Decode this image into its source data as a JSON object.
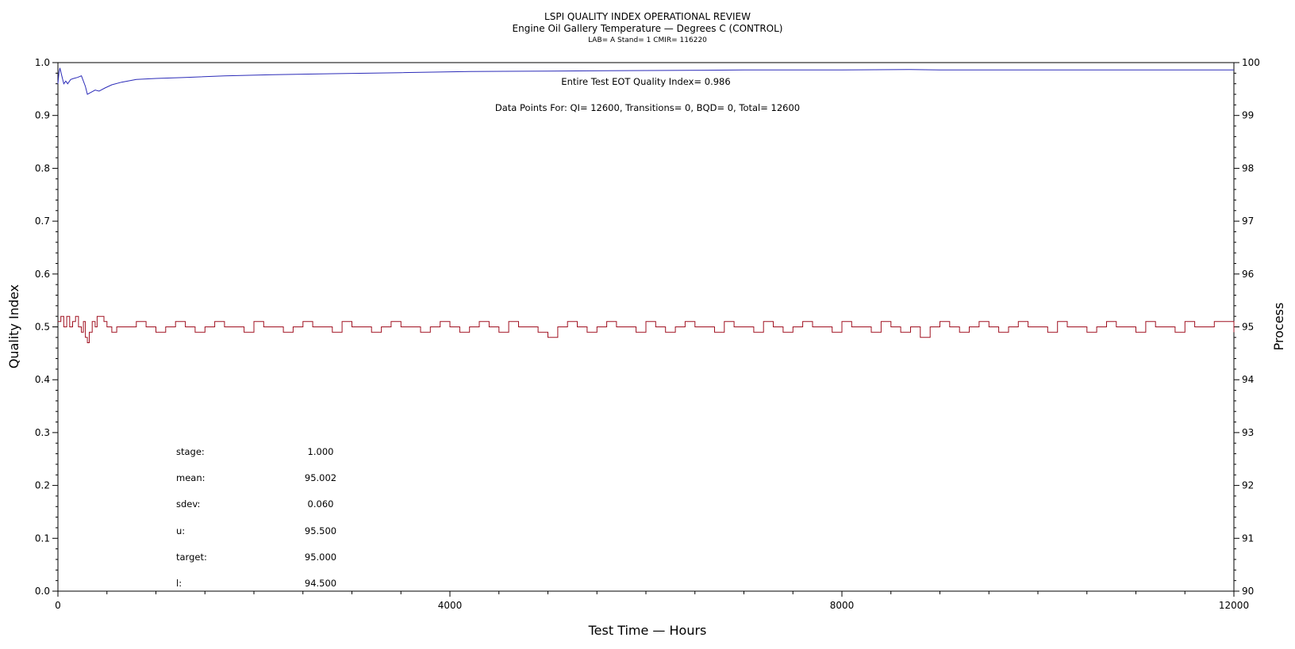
{
  "chart_data": {
    "type": "line",
    "title": "LSPI QUALITY INDEX OPERATIONAL REVIEW",
    "subtitle": "Engine Oil Gallery Temperature — Degrees C (CONTROL)",
    "subtitle2": "LAB= A Stand= 1 CMIR= 116220",
    "xlabel": "Test Time — Hours",
    "ylabel_left": "Quality Index",
    "ylabel_right": "Process",
    "xlim": [
      0,
      12000
    ],
    "ylim_left": [
      0.0,
      1.0
    ],
    "ylim_right": [
      90,
      100
    ],
    "x_ticks": [
      "0",
      "4000",
      "8000",
      "12000"
    ],
    "y_left_ticks": [
      "0.0",
      "0.1",
      "0.2",
      "0.3",
      "0.4",
      "0.5",
      "0.6",
      "0.7",
      "0.8",
      "0.9",
      "1.0"
    ],
    "y_right_ticks": [
      "90",
      "91",
      "92",
      "93",
      "94",
      "95",
      "96",
      "97",
      "98",
      "99",
      "100"
    ],
    "quality_index_text": "Entire Test EOT Quality Index=   0.986",
    "data_points_text": "Data Points For: QI= 12600, Transitions=     0, BQD=     0, Total= 12600",
    "stats": [
      {
        "label": "stage:",
        "value": "1.000"
      },
      {
        "label": "mean:",
        "value": "95.002"
      },
      {
        "label": "sdev:",
        "value": "0.060"
      },
      {
        "label": "u:",
        "value": "95.500"
      },
      {
        "label": "target:",
        "value": "95.000"
      },
      {
        "label": "l:",
        "value": "94.500"
      }
    ],
    "colors": {
      "quality_index": "#2b2bb8",
      "process": "#a01020"
    },
    "series": [
      {
        "axis": "left",
        "x": [
          0,
          10,
          20,
          40,
          60,
          80,
          100,
          130,
          160,
          200,
          240,
          280,
          300,
          320,
          350,
          380,
          420,
          480,
          550,
          650,
          800,
          1000,
          1300,
          1700,
          2200,
          2800,
          3500,
          4200,
          5000,
          6000,
          7000,
          8000,
          8700,
          9000,
          10000,
          11000,
          12000
        ],
        "y": [
          0.96,
          0.98,
          0.99,
          0.975,
          0.96,
          0.965,
          0.96,
          0.968,
          0.97,
          0.972,
          0.975,
          0.955,
          0.94,
          0.942,
          0.945,
          0.948,
          0.946,
          0.952,
          0.958,
          0.963,
          0.968,
          0.97,
          0.972,
          0.975,
          0.977,
          0.979,
          0.981,
          0.983,
          0.984,
          0.985,
          0.986,
          0.986,
          0.987,
          0.986,
          0.986,
          0.986,
          0.986
        ]
      },
      {
        "axis": "right",
        "x": [
          0,
          30,
          60,
          90,
          120,
          150,
          180,
          210,
          240,
          260,
          280,
          300,
          320,
          350,
          380,
          400,
          430,
          470,
          500,
          550,
          600,
          700,
          800,
          900,
          1000,
          1100,
          1200,
          1300,
          1400,
          1500,
          1600,
          1700,
          1800,
          1900,
          2000,
          2100,
          2200,
          2300,
          2400,
          2500,
          2600,
          2700,
          2800,
          2900,
          3000,
          3100,
          3200,
          3300,
          3400,
          3500,
          3600,
          3700,
          3800,
          3900,
          4000,
          4100,
          4200,
          4300,
          4400,
          4500,
          4600,
          4700,
          4800,
          4900,
          5000,
          5100,
          5200,
          5300,
          5400,
          5500,
          5600,
          5700,
          5800,
          5900,
          6000,
          6100,
          6200,
          6300,
          6400,
          6500,
          6600,
          6700,
          6800,
          6900,
          7000,
          7100,
          7200,
          7300,
          7400,
          7500,
          7600,
          7700,
          7800,
          7900,
          8000,
          8100,
          8200,
          8300,
          8400,
          8500,
          8600,
          8700,
          8800,
          8900,
          9000,
          9100,
          9200,
          9300,
          9400,
          9500,
          9600,
          9700,
          9800,
          9900,
          10000,
          10100,
          10200,
          10300,
          10400,
          10500,
          10600,
          10700,
          10800,
          10900,
          11000,
          11100,
          11200,
          11300,
          11400,
          11500,
          11600,
          11700,
          11800,
          11900,
          12000
        ],
        "y": [
          95.1,
          95.2,
          95.0,
          95.2,
          95.0,
          95.1,
          95.2,
          95.0,
          94.9,
          95.1,
          94.8,
          94.7,
          94.9,
          95.1,
          95.0,
          95.2,
          95.2,
          95.1,
          95.0,
          94.9,
          95.0,
          95.0,
          95.1,
          95.0,
          94.9,
          95.0,
          95.1,
          95.0,
          94.9,
          95.0,
          95.1,
          95.0,
          95.0,
          94.9,
          95.1,
          95.0,
          95.0,
          94.9,
          95.0,
          95.1,
          95.0,
          95.0,
          94.9,
          95.1,
          95.0,
          95.0,
          94.9,
          95.0,
          95.1,
          95.0,
          95.0,
          94.9,
          95.0,
          95.1,
          95.0,
          94.9,
          95.0,
          95.1,
          95.0,
          94.9,
          95.1,
          95.0,
          95.0,
          94.9,
          94.8,
          95.0,
          95.1,
          95.0,
          94.9,
          95.0,
          95.1,
          95.0,
          95.0,
          94.9,
          95.1,
          95.0,
          94.9,
          95.0,
          95.1,
          95.0,
          95.0,
          94.9,
          95.1,
          95.0,
          95.0,
          94.9,
          95.1,
          95.0,
          94.9,
          95.0,
          95.1,
          95.0,
          95.0,
          94.9,
          95.1,
          95.0,
          95.0,
          94.9,
          95.1,
          95.0,
          94.9,
          95.0,
          94.8,
          95.0,
          95.1,
          95.0,
          94.9,
          95.0,
          95.1,
          95.0,
          94.9,
          95.0,
          95.1,
          95.0,
          95.0,
          94.9,
          95.1,
          95.0,
          95.0,
          94.9,
          95.0,
          95.1,
          95.0,
          95.0,
          94.9,
          95.1,
          95.0,
          95.0,
          94.9,
          95.1,
          95.0,
          95.0,
          95.1,
          95.1,
          94.9
        ]
      }
    ]
  }
}
